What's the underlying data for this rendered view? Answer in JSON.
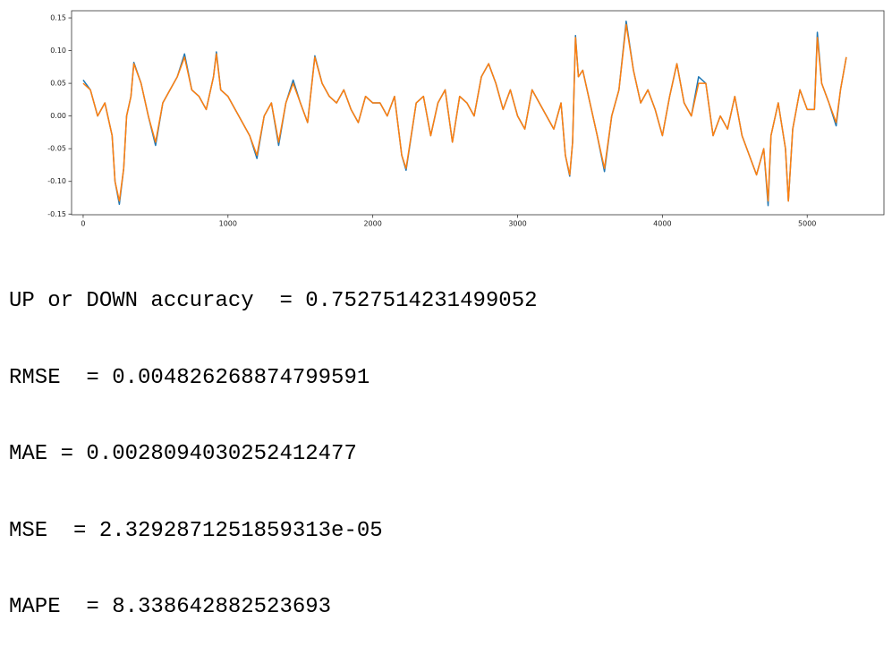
{
  "chart_data": {
    "type": "line",
    "x": [
      0,
      50,
      100,
      150,
      200,
      220,
      250,
      280,
      300,
      330,
      350,
      400,
      450,
      500,
      550,
      600,
      650,
      700,
      750,
      800,
      850,
      900,
      920,
      950,
      1000,
      1050,
      1100,
      1150,
      1200,
      1250,
      1300,
      1350,
      1400,
      1450,
      1500,
      1550,
      1600,
      1650,
      1700,
      1750,
      1800,
      1850,
      1900,
      1950,
      2000,
      2050,
      2100,
      2150,
      2200,
      2230,
      2300,
      2350,
      2400,
      2450,
      2500,
      2550,
      2600,
      2650,
      2700,
      2750,
      2800,
      2850,
      2900,
      2950,
      3000,
      3050,
      3100,
      3150,
      3200,
      3250,
      3300,
      3330,
      3360,
      3380,
      3400,
      3420,
      3450,
      3500,
      3550,
      3600,
      3650,
      3700,
      3750,
      3800,
      3850,
      3900,
      3950,
      4000,
      4050,
      4100,
      4150,
      4200,
      4250,
      4300,
      4350,
      4400,
      4450,
      4500,
      4550,
      4600,
      4650,
      4700,
      4730,
      4750,
      4800,
      4850,
      4870,
      4900,
      4950,
      5000,
      5050,
      5070,
      5100,
      5150,
      5200,
      5230,
      5270
    ],
    "series": [
      {
        "color": "#1f77b4",
        "values": [
          0.055,
          0.04,
          0.0,
          0.02,
          -0.03,
          -0.1,
          -0.135,
          -0.08,
          0.0,
          0.03,
          0.082,
          0.05,
          0.0,
          -0.045,
          0.02,
          0.04,
          0.06,
          0.095,
          0.04,
          0.03,
          0.01,
          0.06,
          0.098,
          0.04,
          0.03,
          0.01,
          -0.01,
          -0.03,
          -0.065,
          0.0,
          0.02,
          -0.045,
          0.02,
          0.055,
          0.02,
          -0.01,
          0.092,
          0.05,
          0.03,
          0.02,
          0.04,
          0.01,
          -0.01,
          0.03,
          0.02,
          0.02,
          0.0,
          0.03,
          -0.06,
          -0.083,
          0.02,
          0.03,
          -0.03,
          0.02,
          0.04,
          -0.04,
          0.03,
          0.02,
          0.0,
          0.06,
          0.08,
          0.05,
          0.01,
          0.04,
          0.0,
          -0.02,
          0.04,
          0.02,
          0.0,
          -0.02,
          0.02,
          -0.06,
          -0.092,
          -0.04,
          0.123,
          0.06,
          0.07,
          0.02,
          -0.03,
          -0.085,
          0.0,
          0.04,
          0.145,
          0.07,
          0.02,
          0.04,
          0.01,
          -0.03,
          0.03,
          0.08,
          0.02,
          0.0,
          0.06,
          0.05,
          -0.03,
          0.0,
          -0.02,
          0.03,
          -0.03,
          -0.06,
          -0.09,
          -0.05,
          -0.137,
          -0.03,
          0.02,
          -0.05,
          -0.13,
          -0.02,
          0.04,
          0.01,
          0.01,
          0.128,
          0.05,
          0.02,
          -0.015,
          0.04,
          0.09
        ]
      },
      {
        "color": "#ff7f0e",
        "values": [
          0.05,
          0.04,
          0.0,
          0.02,
          -0.03,
          -0.1,
          -0.13,
          -0.08,
          0.0,
          0.03,
          0.08,
          0.05,
          0.0,
          -0.04,
          0.02,
          0.04,
          0.06,
          0.09,
          0.04,
          0.03,
          0.01,
          0.06,
          0.095,
          0.04,
          0.03,
          0.01,
          -0.01,
          -0.03,
          -0.06,
          0.0,
          0.02,
          -0.04,
          0.02,
          0.05,
          0.02,
          -0.01,
          0.09,
          0.05,
          0.03,
          0.02,
          0.04,
          0.01,
          -0.01,
          0.03,
          0.02,
          0.02,
          0.0,
          0.03,
          -0.06,
          -0.08,
          0.02,
          0.03,
          -0.03,
          0.02,
          0.04,
          -0.04,
          0.03,
          0.02,
          0.0,
          0.06,
          0.08,
          0.05,
          0.01,
          0.04,
          0.0,
          -0.02,
          0.04,
          0.02,
          0.0,
          -0.02,
          0.02,
          -0.06,
          -0.09,
          -0.04,
          0.12,
          0.06,
          0.07,
          0.02,
          -0.03,
          -0.08,
          0.0,
          0.04,
          0.14,
          0.07,
          0.02,
          0.04,
          0.01,
          -0.03,
          0.03,
          0.08,
          0.02,
          0.0,
          0.05,
          0.05,
          -0.03,
          0.0,
          -0.02,
          0.03,
          -0.03,
          -0.06,
          -0.09,
          -0.05,
          -0.13,
          -0.03,
          0.02,
          -0.05,
          -0.13,
          -0.02,
          0.04,
          0.01,
          0.01,
          0.12,
          0.05,
          0.02,
          -0.01,
          0.04,
          0.09
        ]
      }
    ],
    "xlim": [
      -80,
      5530
    ],
    "xticks": [
      0,
      1000,
      2000,
      3000,
      4000,
      5000
    ],
    "ylim": [
      -0.151,
      0.161
    ],
    "yticks": [
      -0.15,
      {
        "value": -0.1,
        "label": "-0.10"
      },
      -0.05,
      {
        "value": 0,
        "label": "0.00"
      },
      0.05,
      {
        "value": 0.1,
        "label": "0.10"
      },
      0.15
    ],
    "grid": false
  },
  "output_lines": [
    "UP or DOWN accuracy  = 0.7527514231499052",
    "RMSE  = 0.004826268874799591",
    "MAE = 0.0028094030252412477",
    "MSE  = 2.3292871251859313e-05",
    "MAPE  = 8.338642882523693"
  ]
}
